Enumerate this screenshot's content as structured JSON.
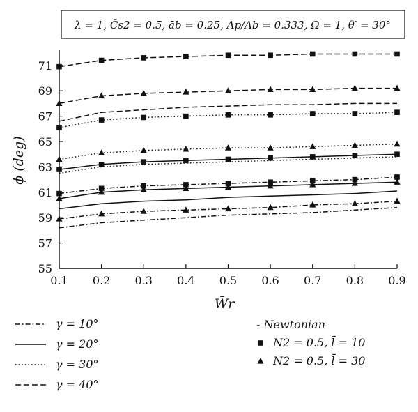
{
  "chart_data": {
    "type": "line",
    "parameters": "λ = 1, C̄s2 = 0.5, āb = 0.25, Ap/Ab = 0.333, Ω = 1, θ′ = 30°",
    "xlabel": "W̄r",
    "ylabel": "ϕ (deg)",
    "xlim": [
      0.1,
      0.9
    ],
    "ylim": [
      55,
      72.2
    ],
    "x_ticks": [
      0.1,
      0.2,
      0.3,
      0.4,
      0.5,
      0.6,
      0.7,
      0.8,
      0.9
    ],
    "y_ticks": [
      55,
      57,
      59,
      61,
      63,
      65,
      67,
      69,
      71
    ],
    "grid": false,
    "x": [
      0.1,
      0.2,
      0.3,
      0.4,
      0.5,
      0.6,
      0.7,
      0.8,
      0.9
    ],
    "series": [
      {
        "gamma": "10°",
        "model": "Newtonian",
        "linestyle": "dashdot",
        "marker": "none",
        "values": [
          58.2,
          58.6,
          58.8,
          59.0,
          59.2,
          59.3,
          59.4,
          59.6,
          59.8
        ]
      },
      {
        "gamma": "10°",
        "model": "N2=0.5, l=10",
        "linestyle": "dashdot",
        "marker": "square",
        "values": [
          60.9,
          61.3,
          61.5,
          61.6,
          61.7,
          61.8,
          61.9,
          62.0,
          62.2
        ]
      },
      {
        "gamma": "10°",
        "model": "N2=0.5, l=30",
        "linestyle": "dashdot",
        "marker": "triangle",
        "values": [
          58.9,
          59.3,
          59.5,
          59.6,
          59.7,
          59.8,
          60.0,
          60.1,
          60.3
        ]
      },
      {
        "gamma": "20°",
        "model": "Newtonian",
        "linestyle": "solid",
        "marker": "none",
        "values": [
          59.7,
          60.1,
          60.3,
          60.4,
          60.6,
          60.7,
          60.8,
          60.9,
          61.1
        ]
      },
      {
        "gamma": "20°",
        "model": "N2=0.5, l=10",
        "linestyle": "solid",
        "marker": "square",
        "values": [
          62.8,
          63.2,
          63.4,
          63.5,
          63.6,
          63.7,
          63.8,
          63.9,
          64.0
        ]
      },
      {
        "gamma": "20°",
        "model": "N2=0.5, l=30",
        "linestyle": "solid",
        "marker": "triangle",
        "values": [
          60.5,
          61.0,
          61.2,
          61.3,
          61.4,
          61.5,
          61.6,
          61.7,
          61.8
        ]
      },
      {
        "gamma": "30°",
        "model": "Newtonian",
        "linestyle": "dotted",
        "marker": "none",
        "values": [
          62.5,
          63.0,
          63.2,
          63.3,
          63.4,
          63.5,
          63.6,
          63.7,
          63.8
        ]
      },
      {
        "gamma": "30°",
        "model": "N2=0.5, l=10",
        "linestyle": "dotted",
        "marker": "square",
        "values": [
          66.1,
          66.7,
          66.9,
          67.0,
          67.1,
          67.1,
          67.2,
          67.2,
          67.3
        ]
      },
      {
        "gamma": "30°",
        "model": "N2=0.5, l=30",
        "linestyle": "dotted",
        "marker": "triangle",
        "values": [
          63.6,
          64.1,
          64.3,
          64.4,
          64.5,
          64.5,
          64.6,
          64.7,
          64.8
        ]
      },
      {
        "gamma": "40°",
        "model": "Newtonian",
        "linestyle": "dashed",
        "marker": "none",
        "values": [
          66.6,
          67.3,
          67.5,
          67.7,
          67.8,
          67.9,
          67.9,
          68.0,
          68.0
        ]
      },
      {
        "gamma": "40°",
        "model": "N2=0.5, l=10",
        "linestyle": "dashed",
        "marker": "square",
        "values": [
          70.9,
          71.4,
          71.6,
          71.7,
          71.8,
          71.8,
          71.9,
          71.9,
          71.9
        ]
      },
      {
        "gamma": "40°",
        "model": "N2=0.5, l=30",
        "linestyle": "dashed",
        "marker": "triangle",
        "values": [
          68.0,
          68.6,
          68.8,
          68.9,
          69.0,
          69.1,
          69.1,
          69.2,
          69.2
        ]
      }
    ],
    "legend_styles": [
      {
        "label": "γ = 10°",
        "linestyle": "dashdot"
      },
      {
        "label": "γ = 20°",
        "linestyle": "solid"
      },
      {
        "label": "γ = 30°",
        "linestyle": "dotted"
      },
      {
        "label": "γ = 40°",
        "linestyle": "dashed"
      }
    ],
    "legend_models": [
      {
        "label": "- Newtonian",
        "marker": "none"
      },
      {
        "label": "N2 = 0.5, l̄ = 10",
        "marker": "square"
      },
      {
        "label": "N2 = 0.5, l̄ = 30",
        "marker": "triangle"
      }
    ],
    "legend_placement": "bottom"
  }
}
